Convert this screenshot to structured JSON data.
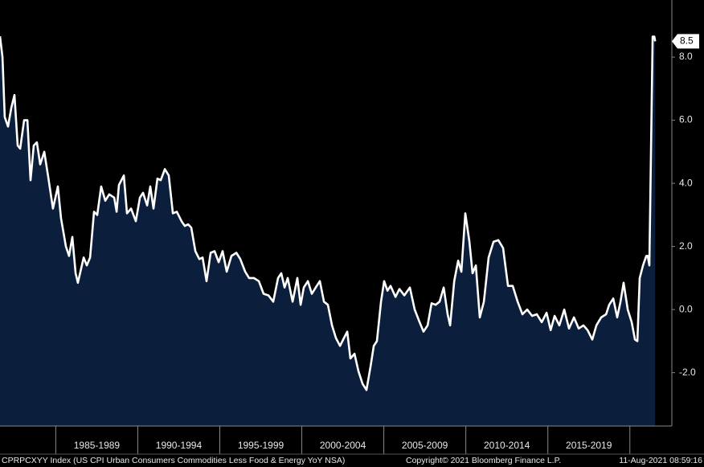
{
  "chart_data": {
    "type": "area",
    "caption": "CPRPCXYY Index (US CPI Urban Consumers Commodities Less Food & Energy YoY NSA)",
    "copyright": "Copyright© 2021 Bloomberg Finance L.P.",
    "timestamp": "11-Aug-2021 08:59:16",
    "fill_color": "#0b1f3c",
    "line_color": "#ffffff",
    "last_label": "8.5",
    "xlim": [
      1981.6,
      2022.56
    ],
    "xticks": [
      1985,
      1990,
      1995,
      2000,
      2005,
      2010,
      2015,
      2020
    ],
    "periods": [
      "1985-1989",
      "1990-1994",
      "1995-1999",
      "2000-2004",
      "2005-2009",
      "2010-2014",
      "2015-2019"
    ],
    "ylim": [
      -3.69,
      9.81
    ],
    "yticks": [
      {
        "value": -2,
        "label": "-2.0"
      },
      {
        "value": 0,
        "label": "0.0"
      },
      {
        "value": 2,
        "label": "2.0"
      },
      {
        "value": 4,
        "label": "4.0"
      },
      {
        "value": 6,
        "label": "6.0"
      },
      {
        "value": 8,
        "label": "8.0"
      }
    ],
    "x": [
      1981.6,
      1981.75,
      1981.89,
      1982.09,
      1982.29,
      1982.48,
      1982.68,
      1982.83,
      1983.07,
      1983.27,
      1983.46,
      1983.66,
      1983.85,
      1984.05,
      1984.3,
      1984.54,
      1984.83,
      1985.13,
      1985.32,
      1985.62,
      1985.81,
      1986.01,
      1986.21,
      1986.35,
      1986.7,
      1986.89,
      1987.09,
      1987.33,
      1987.53,
      1987.77,
      1988.02,
      1988.26,
      1988.56,
      1988.71,
      1988.85,
      1989.15,
      1989.34,
      1989.59,
      1989.88,
      1990.13,
      1990.32,
      1990.57,
      1990.76,
      1990.96,
      1991.2,
      1991.4,
      1991.65,
      1991.89,
      1992.14,
      1992.38,
      1992.67,
      1992.87,
      1993.07,
      1993.26,
      1993.51,
      1993.75,
      1993.95,
      1994.19,
      1994.44,
      1994.68,
      1994.93,
      1995.17,
      1995.42,
      1995.71,
      1996.01,
      1996.25,
      1996.55,
      1996.79,
      1997.08,
      1997.38,
      1997.67,
      1997.97,
      1998.26,
      1998.55,
      1998.75,
      1998.95,
      1999.14,
      1999.44,
      1999.73,
      1999.93,
      2000.12,
      2000.37,
      2000.61,
      2000.91,
      2001.1,
      2001.35,
      2001.59,
      2001.84,
      2002.08,
      2002.33,
      2002.57,
      2002.77,
      2002.96,
      2003.21,
      2003.45,
      2003.7,
      2003.94,
      2004.19,
      2004.39,
      2004.58,
      2004.83,
      2005.02,
      2005.22,
      2005.41,
      2005.71,
      2005.95,
      2006.25,
      2006.59,
      2006.88,
      2007.18,
      2007.42,
      2007.67,
      2007.91,
      2008.16,
      2008.4,
      2008.65,
      2008.89,
      2009.04,
      2009.29,
      2009.53,
      2009.73,
      2009.97,
      2010.22,
      2010.41,
      2010.61,
      2010.85,
      2011.1,
      2011.39,
      2011.69,
      2011.98,
      2012.27,
      2012.57,
      2012.86,
      2013.16,
      2013.45,
      2013.74,
      2014.04,
      2014.33,
      2014.63,
      2014.92,
      2015.17,
      2015.41,
      2015.7,
      2016.0,
      2016.29,
      2016.59,
      2016.88,
      2017.17,
      2017.42,
      2017.71,
      2017.96,
      2018.25,
      2018.55,
      2018.74,
      2018.99,
      2019.23,
      2019.43,
      2019.62,
      2019.87,
      2020.11,
      2020.31,
      2020.46,
      2020.6,
      2020.8,
      2021.0,
      2021.09,
      2021.19,
      2021.39,
      2021.49,
      2021.54
    ],
    "values": [
      8.66,
      8.0,
      6.1,
      5.8,
      6.4,
      6.8,
      5.2,
      5.1,
      6.0,
      6.0,
      4.1,
      5.2,
      5.3,
      4.6,
      5.0,
      4.2,
      3.2,
      3.9,
      2.9,
      2.0,
      1.7,
      2.3,
      1.15,
      0.85,
      1.65,
      1.4,
      1.65,
      3.1,
      3.0,
      3.9,
      3.45,
      3.65,
      3.55,
      3.1,
      3.95,
      4.25,
      3.05,
      3.2,
      2.8,
      3.55,
      3.7,
      3.3,
      3.9,
      3.2,
      4.15,
      4.1,
      4.45,
      4.25,
      3.05,
      3.1,
      2.8,
      2.65,
      2.7,
      2.6,
      1.85,
      1.6,
      1.65,
      0.9,
      1.8,
      1.85,
      1.5,
      1.85,
      1.2,
      1.7,
      1.8,
      1.6,
      1.2,
      1.0,
      1.0,
      0.9,
      0.5,
      0.45,
      0.25,
      1.0,
      1.15,
      0.7,
      1.0,
      0.25,
      1.0,
      0.15,
      0.7,
      0.9,
      0.5,
      0.75,
      0.9,
      0.25,
      0.15,
      -0.5,
      -0.9,
      -1.15,
      -0.9,
      -0.7,
      -1.55,
      -1.4,
      -1.95,
      -2.35,
      -2.55,
      -1.8,
      -1.15,
      -1.0,
      0.25,
      0.9,
      0.6,
      0.75,
      0.4,
      0.65,
      0.45,
      0.7,
      0.0,
      -0.4,
      -0.7,
      -0.5,
      0.2,
      0.15,
      0.25,
      0.7,
      -0.15,
      -0.5,
      0.9,
      1.55,
      1.2,
      3.05,
      2.15,
      1.15,
      1.4,
      -0.25,
      0.25,
      1.65,
      2.15,
      2.2,
      1.95,
      0.75,
      0.75,
      0.25,
      -0.15,
      0.0,
      -0.2,
      -0.15,
      -0.4,
      -0.1,
      -0.65,
      -0.2,
      -0.5,
      0.0,
      -0.6,
      -0.25,
      -0.6,
      -0.5,
      -0.65,
      -0.95,
      -0.5,
      -0.25,
      -0.15,
      0.15,
      0.35,
      -0.25,
      0.25,
      0.85,
      0.0,
      -0.4,
      -0.95,
      -1.0,
      1.0,
      1.4,
      1.7,
      1.7,
      1.4,
      8.65,
      8.65,
      8.5
    ]
  }
}
